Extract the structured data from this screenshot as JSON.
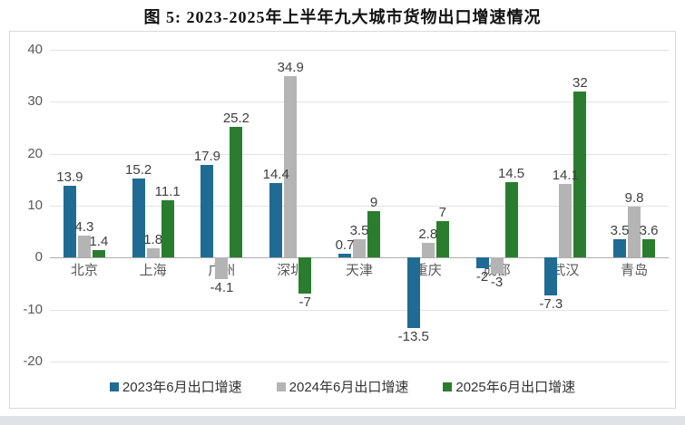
{
  "page": {
    "title": "图 5: 2023-2025年上半年九大城市货物出口增速情况"
  },
  "chart_data": {
    "type": "bar",
    "title": "图 5: 2023-2025年上半年九大城市货物出口增速情况",
    "categories": [
      "北京",
      "上海",
      "广州",
      "深圳",
      "天津",
      "重庆",
      "成都",
      "武汉",
      "青岛"
    ],
    "series": [
      {
        "name": "2023年6月出口增速",
        "color": "#1f6b94",
        "values": [
          13.9,
          15.2,
          17.9,
          14.4,
          0.7,
          -13.5,
          -2,
          -7.3,
          3.5
        ]
      },
      {
        "name": "2024年6月出口增速",
        "color": "#b4b4b4",
        "values": [
          4.3,
          1.8,
          -4.1,
          34.9,
          3.5,
          2.8,
          -3,
          14.1,
          9.8
        ]
      },
      {
        "name": "2025年6月出口增速",
        "color": "#2a7d2e",
        "values": [
          1.4,
          11.1,
          25.2,
          -7,
          9,
          7,
          14.5,
          32,
          3.6
        ]
      }
    ],
    "xlabel": "",
    "ylabel": "",
    "yticks": [
      40,
      30,
      20,
      10,
      0,
      -10,
      -20
    ],
    "ylim": [
      -20,
      40
    ],
    "grid": true,
    "legend_position": "bottom",
    "data_labels": true
  },
  "colors": {
    "grid": "#e3e3e3",
    "zero_axis": "#adadad",
    "axis_text": "#595959",
    "label_text": "#404040",
    "panel_border": "#d9d9d9",
    "background": "#ffffff"
  }
}
